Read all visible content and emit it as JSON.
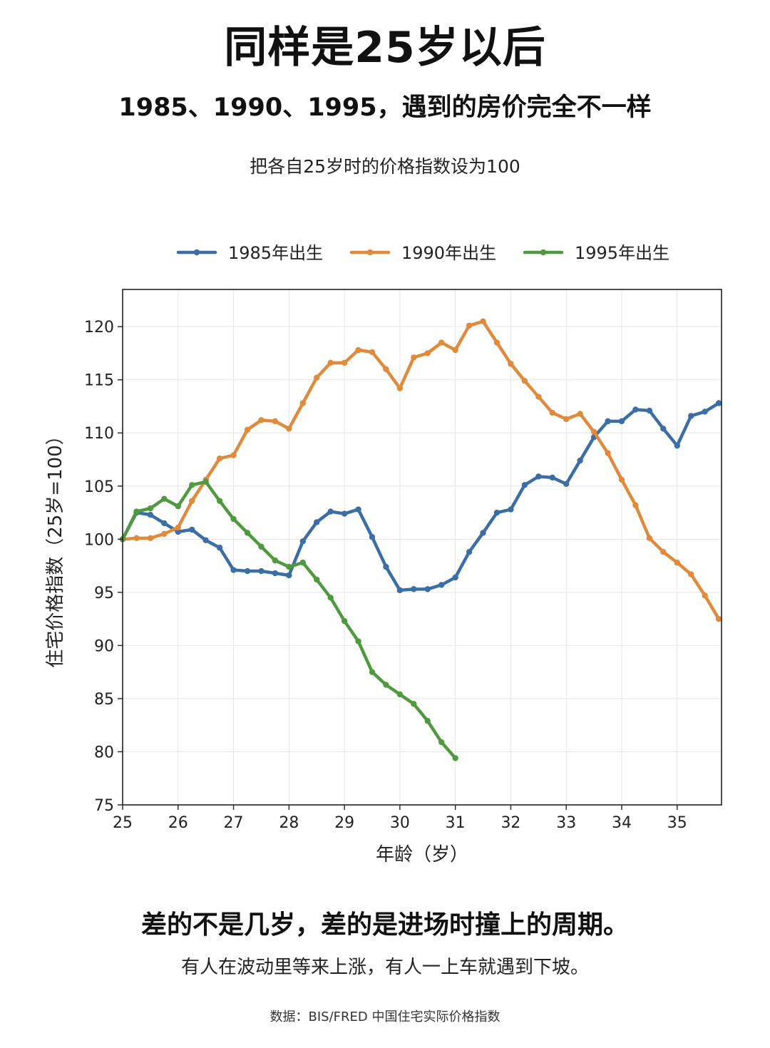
{
  "header": {
    "title": "同样是25岁以后",
    "subtitle": "1985、1990、1995，遇到的房价完全不一样",
    "note": "把各自25岁时的价格指数设为100"
  },
  "footer": {
    "takeaway": "差的不是几岁，差的是进场时撞上的周期。",
    "takeaway_sub": "有人在波动里等来上涨，有人一上车就遇到下坡。",
    "source": "数据：BIS/FRED 中国住宅实际价格指数"
  },
  "chart_data": {
    "type": "line",
    "xlabel": "年龄（岁）",
    "ylabel": "住宅价格指数（25岁=100）",
    "xlim": [
      25,
      35.8
    ],
    "ylim": [
      75,
      123.5
    ],
    "xticks": [
      25,
      26,
      27,
      28,
      29,
      30,
      31,
      32,
      33,
      34,
      35
    ],
    "yticks": [
      75,
      80,
      85,
      90,
      95,
      100,
      105,
      110,
      115,
      120
    ],
    "grid": true,
    "legend_position": "top",
    "series": [
      {
        "name": "1985年出生",
        "color": "#3b6ea5",
        "x": [
          25,
          25.25,
          25.5,
          25.75,
          26,
          26.25,
          26.5,
          26.75,
          27,
          27.25,
          27.5,
          27.75,
          28,
          28.25,
          28.5,
          28.75,
          29,
          29.25,
          29.5,
          29.75,
          30,
          30.25,
          30.5,
          30.75,
          31,
          31.25,
          31.5,
          31.75,
          32,
          32.25,
          32.5,
          32.75,
          33,
          33.25,
          33.5,
          33.75,
          34,
          34.25,
          34.5,
          34.75,
          35,
          35.25,
          35.5,
          35.75
        ],
        "y": [
          100,
          102.5,
          102.3,
          101.5,
          100.7,
          100.9,
          99.9,
          99.2,
          97.1,
          97.0,
          97.0,
          96.8,
          96.6,
          99.8,
          101.6,
          102.6,
          102.4,
          102.8,
          100.2,
          97.4,
          95.2,
          95.3,
          95.3,
          95.7,
          96.4,
          98.8,
          100.6,
          102.5,
          102.8,
          105.1,
          105.9,
          105.8,
          105.2,
          107.4,
          109.6,
          111.1,
          111.1,
          112.2,
          112.1,
          110.4,
          108.8,
          111.6,
          112.0,
          112.8
        ]
      },
      {
        "name": "1990年出生",
        "color": "#e08a3c",
        "x": [
          25,
          25.25,
          25.5,
          25.75,
          26,
          26.25,
          26.5,
          26.75,
          27,
          27.25,
          27.5,
          27.75,
          28,
          28.25,
          28.5,
          28.75,
          29,
          29.25,
          29.5,
          29.75,
          30,
          30.25,
          30.5,
          30.75,
          31,
          31.25,
          31.5,
          31.75,
          32,
          32.25,
          32.5,
          32.75,
          33,
          33.25,
          33.5,
          33.75,
          34,
          34.25,
          34.5,
          34.75,
          35,
          35.25,
          35.5,
          35.75
        ],
        "y": [
          100,
          100.1,
          100.1,
          100.5,
          101.1,
          103.6,
          105.6,
          107.6,
          107.9,
          110.3,
          111.2,
          111.1,
          110.4,
          112.8,
          115.2,
          116.6,
          116.6,
          117.8,
          117.6,
          116.0,
          114.2,
          117.1,
          117.5,
          118.5,
          117.8,
          120.1,
          120.5,
          118.5,
          116.5,
          114.9,
          113.4,
          111.9,
          111.3,
          111.8,
          110.1,
          108.1,
          105.6,
          103.2,
          100.1,
          98.8,
          97.8,
          96.7,
          94.7,
          92.5
        ]
      },
      {
        "name": "1995年出生",
        "color": "#4f9a3f",
        "x": [
          25,
          25.25,
          25.5,
          25.75,
          26,
          26.25,
          26.5,
          26.75,
          27,
          27.25,
          27.5,
          27.75,
          28,
          28.25,
          28.5,
          28.75,
          29,
          29.25,
          29.5,
          29.75,
          30,
          30.25,
          30.5,
          30.75,
          31
        ],
        "y": [
          100,
          102.6,
          102.9,
          103.8,
          103.1,
          105.1,
          105.4,
          103.6,
          101.9,
          100.6,
          99.3,
          98.0,
          97.4,
          97.8,
          96.2,
          94.5,
          92.3,
          90.4,
          87.5,
          86.3,
          85.4,
          84.5,
          82.9,
          80.9,
          79.4
        ]
      }
    ]
  }
}
